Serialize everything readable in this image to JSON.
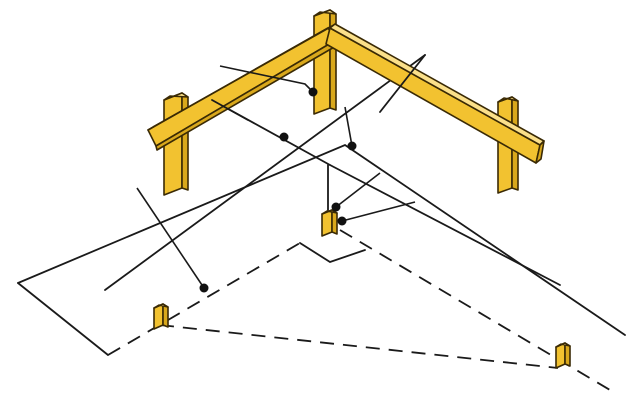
{
  "diagram": {
    "colors": {
      "wood": "#f2c230",
      "wood_edge": "#3a2a05",
      "line": "#1a1a1a",
      "background": "#ffffff"
    },
    "labels": []
  }
}
